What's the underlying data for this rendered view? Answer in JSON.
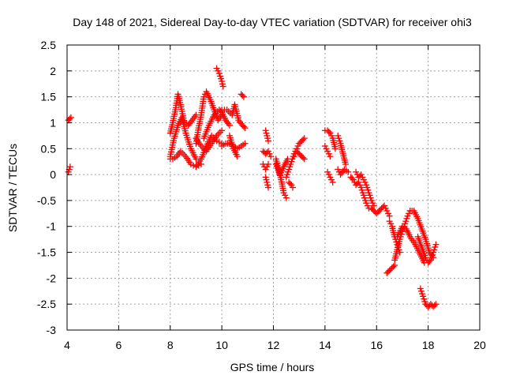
{
  "chart_data": {
    "type": "scatter",
    "title": "Day 148 of 2021, Sidereal Day-to-day VTEC variation (SDTVAR) for receiver ohi3",
    "xlabel": "GPS time / hours",
    "ylabel": "SDTVAR / TECUs",
    "xlim": [
      4,
      20
    ],
    "ylim": [
      -3,
      2.5
    ],
    "xticks": [
      4,
      6,
      8,
      10,
      12,
      14,
      16,
      18,
      20
    ],
    "yticks": [
      2.5,
      2,
      1.5,
      1,
      0.5,
      0,
      -0.5,
      -1,
      -1.5,
      -2,
      -2.5,
      -3
    ],
    "xtick_labels": [
      "4",
      "6",
      "8",
      "10",
      "12",
      "14",
      "16",
      "18",
      "20"
    ],
    "ytick_labels": [
      "2.5",
      "2",
      "1.5",
      "1",
      "0.5",
      "0",
      "-0.5",
      "-1",
      "-1.5",
      "-2",
      "-2.5",
      "-3"
    ],
    "grid": true,
    "marker": "+",
    "marker_color": "#ff0000",
    "series": [
      {
        "name": "SDTVAR",
        "segments": [
          {
            "x": [
              4.05,
              4.15
            ],
            "y": [
              1.05,
              1.1
            ]
          },
          {
            "x": [
              4.05,
              4.12
            ],
            "y": [
              0.05,
              0.15
            ]
          },
          {
            "x": [
              8.0,
              8.1,
              8.2,
              8.3,
              8.4,
              8.55,
              8.7,
              8.85,
              9.0
            ],
            "y": [
              0.8,
              1.0,
              1.25,
              1.55,
              1.35,
              1.0,
              0.95,
              1.05,
              1.15
            ]
          },
          {
            "x": [
              8.0,
              8.15,
              8.3,
              8.45,
              8.6,
              8.8,
              9.0
            ],
            "y": [
              0.35,
              0.7,
              0.95,
              1.1,
              0.8,
              0.5,
              0.3
            ]
          },
          {
            "x": [
              8.0,
              8.1,
              8.25,
              8.4,
              8.6,
              8.8,
              9.0,
              9.2
            ],
            "y": [
              0.3,
              0.3,
              0.35,
              0.45,
              0.35,
              0.2,
              0.15,
              0.2
            ]
          },
          {
            "x": [
              9.0,
              9.2,
              9.4,
              9.6,
              9.8,
              10.0
            ],
            "y": [
              0.15,
              0.3,
              0.55,
              0.75,
              0.65,
              0.6
            ]
          },
          {
            "x": [
              9.0,
              9.2,
              9.4,
              9.6,
              9.8,
              10.0
            ],
            "y": [
              0.7,
              0.55,
              0.45,
              0.6,
              0.75,
              0.85
            ]
          },
          {
            "x": [
              9.0,
              9.1,
              9.2,
              9.3,
              9.4,
              9.55,
              9.7,
              9.85,
              10.0
            ],
            "y": [
              0.6,
              0.9,
              1.15,
              1.5,
              1.6,
              1.45,
              1.25,
              1.05,
              1.15
            ]
          },
          {
            "x": [
              9.3,
              9.5,
              9.7,
              9.9,
              10.0,
              10.15,
              10.3
            ],
            "y": [
              0.7,
              0.95,
              1.15,
              1.25,
              1.2,
              1.05,
              0.95
            ]
          },
          {
            "x": [
              9.8,
              9.9,
              10.0,
              10.05
            ],
            "y": [
              2.05,
              1.95,
              1.8,
              1.7
            ]
          },
          {
            "x": [
              10.0,
              10.15,
              10.3,
              10.45,
              10.6,
              10.75,
              10.9
            ],
            "y": [
              0.55,
              0.6,
              0.6,
              0.55,
              0.5,
              0.55,
              0.6
            ]
          },
          {
            "x": [
              10.0,
              10.2,
              10.4,
              10.5,
              10.65,
              10.8,
              10.9
            ],
            "y": [
              1.25,
              1.25,
              1.15,
              1.35,
              1.05,
              0.95,
              0.9
            ]
          },
          {
            "x": [
              10.3,
              10.45,
              10.6
            ],
            "y": [
              0.75,
              0.5,
              0.35
            ]
          },
          {
            "x": [
              10.75,
              10.85
            ],
            "y": [
              1.55,
              1.5
            ]
          },
          {
            "x": [
              11.7,
              11.75,
              11.8
            ],
            "y": [
              0.85,
              0.75,
              0.65
            ]
          },
          {
            "x": [
              11.6,
              11.7,
              11.8,
              11.9
            ],
            "y": [
              0.45,
              0.4,
              0.45,
              0.35
            ]
          },
          {
            "x": [
              11.6,
              11.7,
              11.8
            ],
            "y": [
              0.2,
              0.1,
              0.2
            ]
          },
          {
            "x": [
              11.7,
              11.75,
              11.8
            ],
            "y": [
              -0.05,
              -0.15,
              -0.25
            ]
          },
          {
            "x": [
              12.1,
              12.2,
              12.3,
              12.4,
              12.5
            ],
            "y": [
              0.3,
              0.1,
              -0.1,
              -0.35,
              -0.45
            ]
          },
          {
            "x": [
              12.1,
              12.25,
              12.4,
              12.55
            ],
            "y": [
              0.2,
              0.0,
              0.15,
              0.3
            ]
          },
          {
            "x": [
              12.5,
              12.6,
              12.7,
              12.8,
              12.9,
              13.0,
              13.1,
              13.2
            ],
            "y": [
              -0.05,
              0.1,
              0.25,
              0.4,
              0.5,
              0.6,
              0.65,
              0.7
            ]
          },
          {
            "x": [
              12.6,
              12.7,
              12.75
            ],
            "y": [
              -0.15,
              -0.2,
              -0.25
            ]
          },
          {
            "x": [
              12.8,
              12.9,
              13.0,
              13.1,
              13.2
            ],
            "y": [
              0.35,
              0.45,
              0.4,
              0.35,
              0.3
            ]
          },
          {
            "x": [
              14.0,
              14.1,
              14.2,
              14.3,
              14.4
            ],
            "y": [
              0.85,
              0.85,
              0.8,
              0.7,
              0.5
            ]
          },
          {
            "x": [
              14.0,
              14.1,
              14.2
            ],
            "y": [
              0.55,
              0.45,
              0.35
            ]
          },
          {
            "x": [
              14.1,
              14.2,
              14.3
            ],
            "y": [
              0.05,
              -0.05,
              -0.15
            ]
          },
          {
            "x": [
              14.5,
              14.6,
              14.7,
              14.8
            ],
            "y": [
              0.75,
              0.6,
              0.4,
              0.2
            ]
          },
          {
            "x": [
              14.5,
              14.6,
              14.75,
              14.9
            ],
            "y": [
              0.1,
              0.0,
              0.1,
              0.05
            ]
          },
          {
            "x": [
              15.0,
              15.1,
              15.2,
              15.3,
              15.4,
              15.5,
              15.6,
              15.7
            ],
            "y": [
              -0.05,
              -0.1,
              -0.2,
              -0.15,
              -0.25,
              -0.4,
              -0.55,
              -0.65
            ]
          },
          {
            "x": [
              15.2,
              15.3,
              15.4,
              15.5,
              15.6,
              15.7,
              15.8,
              15.9
            ],
            "y": [
              0.05,
              -0.05,
              0.0,
              -0.1,
              -0.2,
              -0.35,
              -0.5,
              -0.6
            ]
          },
          {
            "x": [
              15.8,
              15.9,
              16.0,
              16.1,
              16.2,
              16.3,
              16.4,
              16.5
            ],
            "y": [
              -0.65,
              -0.7,
              -0.75,
              -0.7,
              -0.65,
              -0.6,
              -0.7,
              -0.8
            ]
          },
          {
            "x": [
              16.5,
              16.6,
              16.7,
              16.8,
              16.9
            ],
            "y": [
              -0.9,
              -1.0,
              -1.2,
              -1.35,
              -1.5
            ]
          },
          {
            "x": [
              16.4,
              16.5,
              16.6,
              16.7
            ],
            "y": [
              -1.9,
              -1.85,
              -1.8,
              -1.75
            ]
          },
          {
            "x": [
              16.7,
              16.8,
              16.9,
              17.0,
              17.1,
              17.2,
              17.3
            ],
            "y": [
              -1.65,
              -1.45,
              -1.25,
              -1.1,
              -0.95,
              -0.8,
              -0.7
            ]
          },
          {
            "x": [
              16.8,
              17.0,
              17.15,
              17.3,
              17.5,
              17.7,
              17.85
            ],
            "y": [
              -1.2,
              -1.0,
              -1.05,
              -1.2,
              -1.35,
              -1.55,
              -1.7
            ]
          },
          {
            "x": [
              17.3,
              17.45,
              17.6,
              17.75,
              17.9,
              18.05,
              18.2
            ],
            "y": [
              -0.7,
              -0.7,
              -0.85,
              -1.05,
              -1.25,
              -1.5,
              -1.6
            ]
          },
          {
            "x": [
              17.6,
              17.75,
              17.9,
              18.0,
              18.1,
              18.2,
              18.3
            ],
            "y": [
              -1.2,
              -1.4,
              -1.6,
              -1.7,
              -1.65,
              -1.5,
              -1.35
            ]
          },
          {
            "x": [
              17.7,
              17.8,
              17.9,
              18.0,
              18.1,
              18.2,
              18.3
            ],
            "y": [
              -2.2,
              -2.35,
              -2.5,
              -2.55,
              -2.5,
              -2.55,
              -2.5
            ]
          }
        ]
      }
    ]
  }
}
